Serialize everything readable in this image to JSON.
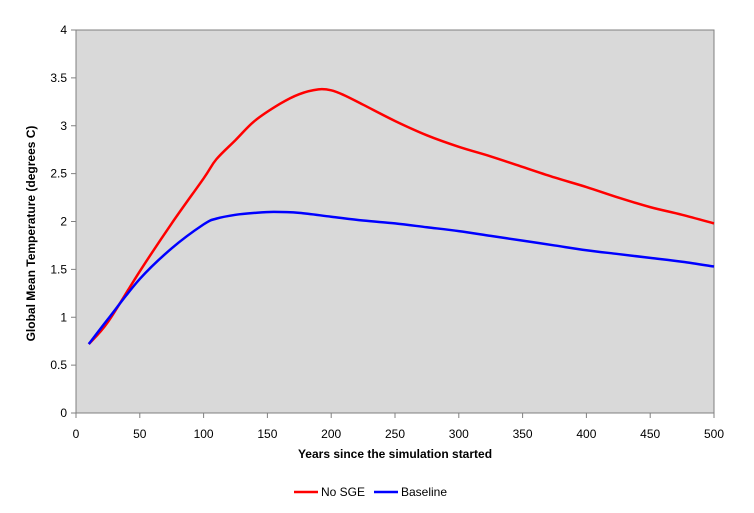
{
  "chart_data": {
    "type": "line",
    "title": "",
    "xlabel": "Years since the simulation started",
    "ylabel": "Global Mean Temperature (degrees C)",
    "xlim": [
      0,
      500
    ],
    "ylim": [
      0,
      4
    ],
    "x_ticks": [
      "0",
      "50",
      "100",
      "150",
      "200",
      "250",
      "300",
      "350",
      "400",
      "450",
      "500"
    ],
    "y_ticks": [
      "0",
      "0.5",
      "1",
      "1.5",
      "2",
      "2.5",
      "3",
      "3.5",
      "4"
    ],
    "plot_background": "#d9d9d9",
    "grid": false,
    "legend_position": "bottom",
    "series": [
      {
        "name": "No SGE",
        "color": "#ff0000",
        "x": [
          10,
          25,
          50,
          75,
          100,
          110,
          125,
          140,
          160,
          175,
          190,
          200,
          210,
          225,
          250,
          275,
          300,
          325,
          350,
          375,
          400,
          425,
          450,
          475,
          500
        ],
        "y": [
          0.72,
          0.95,
          1.48,
          1.98,
          2.45,
          2.65,
          2.85,
          3.05,
          3.23,
          3.33,
          3.38,
          3.37,
          3.32,
          3.22,
          3.05,
          2.9,
          2.78,
          2.68,
          2.57,
          2.46,
          2.36,
          2.25,
          2.15,
          2.07,
          1.98
        ]
      },
      {
        "name": "Baseline",
        "color": "#0000ff",
        "x": [
          10,
          25,
          50,
          75,
          100,
          110,
          125,
          140,
          155,
          175,
          200,
          225,
          250,
          275,
          300,
          325,
          350,
          375,
          400,
          425,
          450,
          475,
          500
        ],
        "y": [
          0.72,
          0.98,
          1.4,
          1.72,
          1.97,
          2.03,
          2.07,
          2.09,
          2.1,
          2.09,
          2.05,
          2.01,
          1.98,
          1.94,
          1.9,
          1.85,
          1.8,
          1.75,
          1.7,
          1.66,
          1.62,
          1.58,
          1.53
        ]
      }
    ]
  }
}
